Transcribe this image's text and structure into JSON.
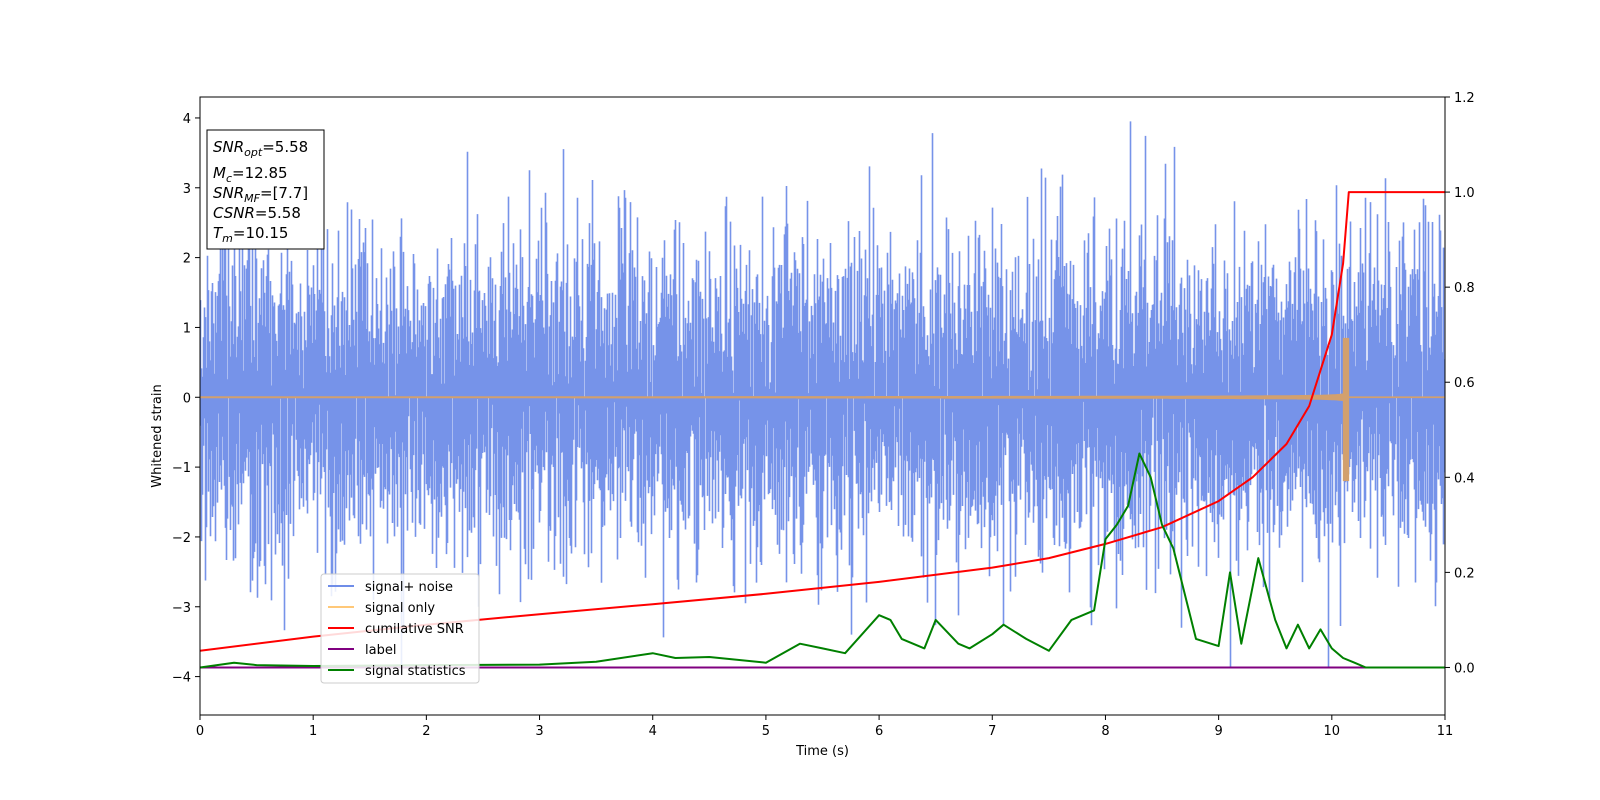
{
  "chart_data": {
    "type": "line",
    "title": "",
    "xlabel": "Time (s)",
    "ylabel": "Whitened strain",
    "xlim": [
      0,
      11
    ],
    "ylim": [
      -4.55,
      4.3
    ],
    "y2lim": [
      -0.1,
      1.2
    ],
    "grid": false,
    "legend_position": "lower-left",
    "x_ticks": [
      "0",
      "1",
      "2",
      "3",
      "4",
      "5",
      "6",
      "7",
      "8",
      "9",
      "10",
      "11"
    ],
    "y_ticks": [
      "4",
      "3",
      "2",
      "1",
      "0",
      "−1",
      "−2",
      "−3",
      "−4"
    ],
    "y2_ticks": [
      "1.2",
      "1.0",
      "0.8",
      "0.6",
      "0.4",
      "0.2",
      "0.0"
    ],
    "info_box": {
      "snr_opt": {
        "base": "SNR",
        "sub": "opt",
        "value": "=5.58"
      },
      "mc": {
        "base": "M",
        "sub": "c",
        "value": "=12.85"
      },
      "snr_mf": {
        "base": "SNR",
        "sub": "MF",
        "value": "=[7.7]"
      },
      "csnr": {
        "base": "CSNR",
        "sub": "",
        "value": "=5.58"
      },
      "tm": {
        "base": "T",
        "sub": "m",
        "value": "=10.15"
      }
    },
    "legend": [
      {
        "label": "signal+ noise",
        "color": "#6f8de8"
      },
      {
        "label": "signal only",
        "color": "#ffc878"
      },
      {
        "label": "cumilative SNR",
        "color": "#ff0000"
      },
      {
        "label": "label",
        "color": "#800080"
      },
      {
        "label": "signal statistics",
        "color": "#008000"
      }
    ],
    "series": [
      {
        "name": "signal+ noise",
        "axis": "left",
        "color": "#6f8de8",
        "description_stats": {
          "mean": 0,
          "std": 1.0,
          "min": -4.15,
          "max": 3.95
        }
      },
      {
        "name": "signal only",
        "axis": "left",
        "color": "#d2a06e",
        "merger_time": 10.15,
        "peak_amplitude": [
          0.85,
          -1.2
        ]
      },
      {
        "name": "cumilative SNR",
        "axis": "right",
        "color": "#ff0000",
        "x": [
          0,
          1,
          2,
          3,
          4,
          5,
          6,
          7,
          7.5,
          8,
          8.5,
          9,
          9.3,
          9.6,
          9.8,
          10.0,
          10.1,
          10.15,
          11
        ],
        "values": [
          0.035,
          0.065,
          0.09,
          0.112,
          0.133,
          0.155,
          0.18,
          0.21,
          0.23,
          0.26,
          0.295,
          0.35,
          0.4,
          0.47,
          0.55,
          0.7,
          0.85,
          1.0,
          1.0
        ]
      },
      {
        "name": "label",
        "axis": "right",
        "color": "#800080",
        "x": [
          0,
          11
        ],
        "values": [
          0.0,
          0.0
        ]
      },
      {
        "name": "signal statistics",
        "axis": "right",
        "color": "#008000",
        "x": [
          0,
          0.3,
          0.5,
          1,
          2,
          3,
          3.5,
          4,
          4.2,
          4.5,
          5,
          5.3,
          5.5,
          5.7,
          6,
          6.1,
          6.2,
          6.4,
          6.5,
          6.7,
          6.8,
          7,
          7.1,
          7.3,
          7.5,
          7.7,
          7.9,
          8,
          8.1,
          8.2,
          8.3,
          8.4,
          8.5,
          8.6,
          8.8,
          9,
          9.1,
          9.2,
          9.35,
          9.5,
          9.6,
          9.7,
          9.8,
          9.9,
          10.0,
          10.1,
          10.2,
          10.3,
          11
        ],
        "values": [
          0.0,
          0.01,
          0.005,
          0.003,
          0.005,
          0.006,
          0.012,
          0.03,
          0.02,
          0.022,
          0.01,
          0.05,
          0.04,
          0.03,
          0.11,
          0.1,
          0.06,
          0.04,
          0.1,
          0.05,
          0.04,
          0.07,
          0.09,
          0.06,
          0.035,
          0.1,
          0.12,
          0.27,
          0.3,
          0.34,
          0.45,
          0.4,
          0.3,
          0.25,
          0.06,
          0.045,
          0.2,
          0.05,
          0.23,
          0.1,
          0.04,
          0.09,
          0.04,
          0.08,
          0.04,
          0.02,
          0.01,
          0.0,
          0.0
        ]
      }
    ]
  }
}
